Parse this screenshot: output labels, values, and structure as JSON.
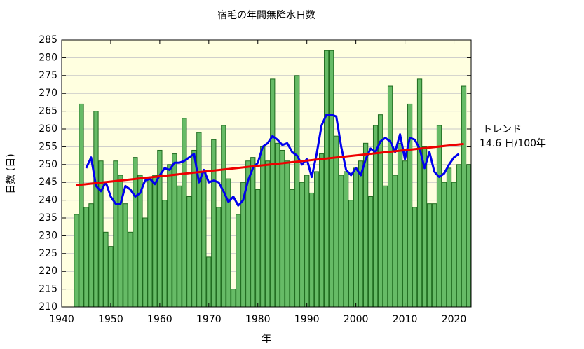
{
  "chart_data": {
    "type": "bar",
    "title": "宿毛の年間無降水日数",
    "x_label": "年",
    "y_label": "日数 (日)",
    "xlim": [
      1940,
      2023.5
    ],
    "ylim": [
      210,
      285
    ],
    "xticks": [
      1940,
      1950,
      1960,
      1970,
      1980,
      1990,
      2000,
      2010,
      2020
    ],
    "yticks": [
      210,
      215,
      220,
      225,
      230,
      235,
      240,
      245,
      250,
      255,
      260,
      265,
      270,
      275,
      280,
      285
    ],
    "background": "#ffffe0",
    "series": [
      {
        "kind": "bar",
        "color": "#66bb66",
        "x": [
          1943,
          1944,
          1945,
          1946,
          1947,
          1948,
          1949,
          1950,
          1951,
          1952,
          1953,
          1954,
          1955,
          1956,
          1957,
          1958,
          1959,
          1960,
          1961,
          1962,
          1963,
          1964,
          1965,
          1966,
          1967,
          1968,
          1969,
          1970,
          1971,
          1972,
          1973,
          1974,
          1975,
          1976,
          1977,
          1978,
          1979,
          1980,
          1981,
          1982,
          1983,
          1984,
          1985,
          1986,
          1987,
          1988,
          1989,
          1990,
          1991,
          1992,
          1993,
          1994,
          1995,
          1996,
          1997,
          1998,
          1999,
          2000,
          2001,
          2002,
          2003,
          2004,
          2005,
          2006,
          2007,
          2008,
          2009,
          2010,
          2011,
          2012,
          2013,
          2014,
          2015,
          2016,
          2017,
          2018,
          2019,
          2020,
          2021,
          2022,
          2023
        ],
        "values": [
          236,
          267,
          238,
          239,
          265,
          251,
          231,
          227,
          251,
          247,
          239,
          231,
          252,
          247,
          235,
          246,
          247,
          254,
          240,
          250,
          253,
          244,
          263,
          241,
          254,
          259,
          248,
          224,
          257,
          238,
          261,
          246,
          215,
          236,
          245,
          251,
          252,
          243,
          255,
          251,
          274,
          256,
          254,
          251,
          243,
          275,
          245,
          247,
          242,
          248,
          253,
          282,
          282,
          258,
          247,
          248,
          240,
          249,
          251,
          256,
          241,
          261,
          264,
          244,
          272,
          247,
          256,
          251,
          267,
          238,
          274,
          255,
          239,
          239,
          261,
          245,
          249,
          245,
          250,
          272,
          250
        ]
      },
      {
        "kind": "line",
        "color": "#0000ee",
        "x": [
          1945,
          1946,
          1947,
          1948,
          1949,
          1950,
          1951,
          1952,
          1953,
          1954,
          1955,
          1956,
          1957,
          1958,
          1959,
          1960,
          1961,
          1962,
          1963,
          1964,
          1965,
          1966,
          1967,
          1968,
          1969,
          1970,
          1971,
          1972,
          1973,
          1974,
          1975,
          1976,
          1977,
          1978,
          1979,
          1980,
          1981,
          1982,
          1983,
          1984,
          1985,
          1986,
          1987,
          1988,
          1989,
          1990,
          1991,
          1992,
          1993,
          1994,
          1995,
          1996,
          1997,
          1998,
          1999,
          2000,
          2001,
          2002,
          2003,
          2004,
          2005,
          2006,
          2007,
          2008,
          2009,
          2010,
          2011,
          2012,
          2013,
          2014,
          2015,
          2016,
          2017,
          2018,
          2019,
          2020,
          2021
        ],
        "values": [
          249,
          252,
          244,
          242.5,
          245,
          241,
          239,
          239,
          244,
          243,
          241,
          242,
          245.5,
          246,
          244.5,
          247,
          249,
          248.5,
          250.5,
          250.5,
          251,
          252,
          253,
          245,
          248.5,
          245,
          245.5,
          245,
          242.5,
          239.5,
          241,
          238.5,
          240,
          245.5,
          249,
          250.5,
          255,
          256,
          258,
          257,
          255.5,
          256,
          253.5,
          252.5,
          250,
          251.5,
          246.5,
          253,
          261,
          264,
          264,
          263.5,
          255,
          248.5,
          247,
          249,
          247,
          251.5,
          254.5,
          253.5,
          256.5,
          257.5,
          256.5,
          253.5,
          258.5,
          251.5,
          257.5,
          257,
          254.5,
          249,
          253.5,
          248,
          246.5,
          247.5,
          250,
          252,
          253
        ]
      },
      {
        "kind": "line",
        "color": "#ee0000",
        "x": [
          1943,
          2022
        ],
        "values": [
          244.2,
          255.8
        ]
      }
    ],
    "annotations": [
      "トレンド",
      "14.6 日/100年"
    ]
  }
}
